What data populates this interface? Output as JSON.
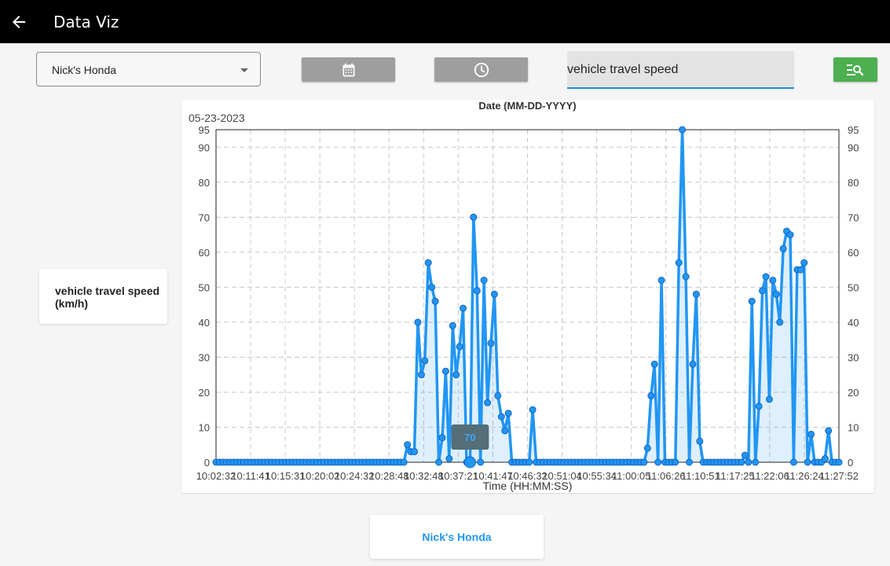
{
  "app": {
    "title": "Data Viz",
    "back_icon": "arrow-back-icon"
  },
  "filters": {
    "vehicle": "Nick's Honda",
    "date_button_icon": "calendar-icon",
    "time_button_icon": "clock-icon",
    "search_value": "vehicle travel speed",
    "query_button_icon": "manage-search-icon"
  },
  "legend": {
    "label": "vehicle travel speed (km/h)"
  },
  "bottom_card": {
    "label": "Nick's Honda"
  },
  "colors": {
    "appbar": "#000000",
    "series": "#2196f3",
    "query_button": "#4caf50",
    "gray_button": "#9e9e9e",
    "tooltip_bg": "#546e7a"
  },
  "chart_data": {
    "type": "line",
    "title": "Date (MM-DD-YYYY)",
    "date_label": "05-23-2023",
    "xlabel": "Time (HH:MM:SS)",
    "ylabel": "",
    "ylim": [
      0,
      95
    ],
    "y_ticks": [
      0,
      10,
      20,
      30,
      40,
      50,
      60,
      70,
      80,
      90,
      95
    ],
    "x_tick_labels": [
      "10:02:32",
      "10:11:41",
      "10:15:31",
      "10:20:02",
      "10:24:32",
      "10:28:48",
      "10:32:48",
      "10:37:21",
      "10:41:47",
      "10:46:32",
      "10:51:04",
      "10:55:34",
      "11:00:05",
      "11:06:26",
      "11:10:51",
      "11:17:25",
      "11:22:06",
      "11:26:24",
      "11:27:52"
    ],
    "grid": true,
    "right_axis": true,
    "tooltip": {
      "value": 70,
      "point_index": 73
    },
    "series": [
      {
        "name": "vehicle travel speed (km/h)",
        "color": "#2196f3",
        "values": [
          0,
          0,
          0,
          0,
          0,
          0,
          0,
          0,
          0,
          0,
          0,
          0,
          0,
          0,
          0,
          0,
          0,
          0,
          0,
          0,
          0,
          0,
          0,
          0,
          0,
          0,
          0,
          0,
          0,
          0,
          0,
          0,
          0,
          0,
          0,
          0,
          0,
          0,
          0,
          0,
          0,
          0,
          0,
          0,
          0,
          0,
          0,
          0,
          0,
          0,
          0,
          0,
          0,
          0,
          0,
          5,
          3,
          3,
          40,
          25,
          29,
          57,
          50,
          46,
          0,
          7,
          26,
          1,
          39,
          25,
          33,
          44,
          0,
          0,
          70,
          49,
          0,
          52,
          17,
          34,
          48,
          19,
          13,
          9,
          14,
          0,
          0,
          0,
          0,
          0,
          0,
          15,
          0,
          0,
          0,
          0,
          0,
          0,
          0,
          0,
          0,
          0,
          0,
          0,
          0,
          0,
          0,
          0,
          0,
          0,
          0,
          0,
          0,
          0,
          0,
          0,
          0,
          0,
          0,
          0,
          0,
          0,
          0,
          0,
          4,
          19,
          28,
          0,
          52,
          0,
          0,
          0,
          0,
          57,
          95,
          53,
          0,
          28,
          48,
          6,
          0,
          0,
          0,
          0,
          0,
          0,
          0,
          0,
          0,
          0,
          0,
          0,
          2,
          0,
          46,
          0,
          16,
          49,
          53,
          18,
          52,
          48,
          40,
          61,
          66,
          65,
          0,
          55,
          55,
          57,
          0,
          8,
          0,
          0,
          0,
          1,
          9,
          0,
          0,
          0
        ]
      }
    ]
  }
}
